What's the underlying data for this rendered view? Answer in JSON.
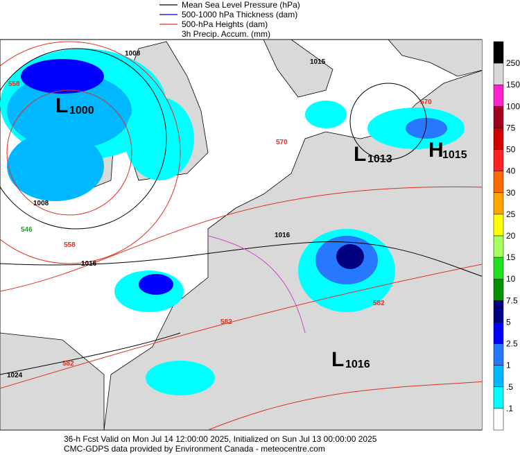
{
  "legend": [
    "Mean Sea Level Pressure (hPa)",
    "500-1000 hPa Thickness (dam)",
    "500-hPa Heights (dam)",
    "3h Precip. Accum. (mm)"
  ],
  "legend_colors": [
    "#000000",
    "#0000cc",
    "#e03020",
    null
  ],
  "colorbar": {
    "labels": [
      "250",
      "150",
      "100",
      "75",
      "50",
      "40",
      "30",
      "25",
      "20",
      "15",
      "10",
      "7.5",
      "5",
      "2.5",
      "1",
      ".5",
      ".1"
    ],
    "colors": [
      "#000000",
      "#d8d8d8",
      "#ff22cc",
      "#a00020",
      "#d00000",
      "#ff2020",
      "#ff6a00",
      "#ffa500",
      "#ffff00",
      "#a8ff60",
      "#20e020",
      "#009000",
      "#000080",
      "#0000ff",
      "#2878ff",
      "#00b8ff",
      "#00ffff",
      "#ffffff"
    ]
  },
  "pressure_centers": [
    {
      "letter": "L",
      "value": "1000"
    },
    {
      "letter": "L",
      "value": "1013"
    },
    {
      "letter": "H",
      "value": "1015"
    },
    {
      "letter": "L",
      "value": "1016"
    }
  ],
  "contour_labels": [
    "1008",
    "558",
    "1015",
    "570",
    "570",
    "1008",
    "546",
    "558",
    "1016",
    "1016",
    "582",
    "582",
    "582",
    "1024"
  ],
  "footer": [
    "36-h Fcst Valid on Mon Jul 14 12:00:00 2025, Initialized on Sun Jul 13 00:00:00 2025",
    "CMC-GDPS data provided by Environment Canada - meteocentre.com"
  ]
}
